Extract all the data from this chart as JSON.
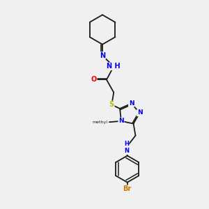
{
  "bg_color": "#f0f0f0",
  "bond_color": "#1a1a1a",
  "atom_colors": {
    "N": "#0000ee",
    "O": "#ee0000",
    "S": "#bbbb00",
    "Br": "#cc7700",
    "C": "#1a1a1a"
  },
  "font_size": 7.0,
  "bond_width": 1.3,
  "dbo": 0.055,
  "figsize": [
    3.0,
    3.0
  ],
  "dpi": 100,
  "xlim": [
    0,
    10
  ],
  "ylim": [
    0,
    10
  ]
}
